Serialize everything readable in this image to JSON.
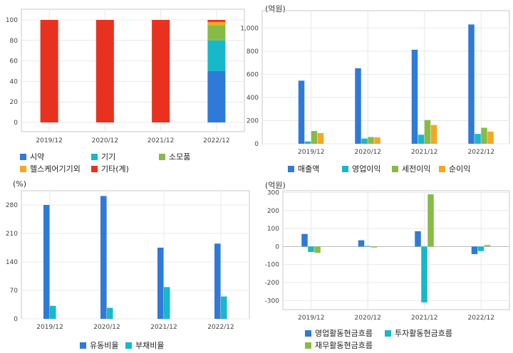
{
  "colors": {
    "blue": "#2f7ad9",
    "teal": "#17b8c9",
    "green": "#86bc45",
    "orange": "#f5a623",
    "red": "#e8321f"
  },
  "chart_data": [
    {
      "type": "bar",
      "stacked": true,
      "categories": [
        "2019/12",
        "2020/12",
        "2021/12",
        "2022/12"
      ],
      "ylim": [
        0,
        100
      ],
      "yticks": [
        0,
        20,
        40,
        60,
        80,
        100
      ],
      "legend_position": "bottom",
      "series": [
        {
          "name": "시약",
          "color": "#2f7ad9",
          "values": [
            0,
            0,
            0,
            50
          ]
        },
        {
          "name": "기기",
          "color": "#17b8c9",
          "values": [
            0,
            0,
            0,
            30
          ]
        },
        {
          "name": "소모품",
          "color": "#86bc45",
          "values": [
            0,
            0,
            0,
            15
          ]
        },
        {
          "name": "헬스케어기기외",
          "color": "#f5a623",
          "values": [
            0,
            0,
            0,
            3
          ]
        },
        {
          "name": "기타(계)",
          "color": "#e8321f",
          "values": [
            100,
            100,
            100,
            2
          ]
        }
      ]
    },
    {
      "type": "bar",
      "unit": "(억원)",
      "categories": [
        "2019/12",
        "2020/12",
        "2021/12",
        "2022/12"
      ],
      "ylim": [
        0,
        1100
      ],
      "yticks": [
        0,
        200,
        400,
        600,
        800,
        1000
      ],
      "ytick_labels": [
        "0",
        "200",
        "400",
        "600",
        "800",
        "1,000"
      ],
      "legend_position": "bottom",
      "series": [
        {
          "name": "매출액",
          "color": "#2f7ad9",
          "values": [
            545,
            652,
            812,
            1030
          ]
        },
        {
          "name": "영업이익",
          "color": "#17b8c9",
          "values": [
            20,
            45,
            78,
            85
          ]
        },
        {
          "name": "세전이익",
          "color": "#86bc45",
          "values": [
            110,
            58,
            205,
            138
          ]
        },
        {
          "name": "순이익",
          "color": "#f5a623",
          "values": [
            92,
            55,
            162,
            105
          ]
        }
      ]
    },
    {
      "type": "bar",
      "unit": "(%)",
      "categories": [
        "2019/12",
        "2020/12",
        "2021/12",
        "2022/12"
      ],
      "ylim": [
        0,
        315
      ],
      "yticks": [
        0,
        70,
        140,
        210,
        280
      ],
      "legend_position": "bottom",
      "series": [
        {
          "name": "유동비율",
          "color": "#2f7ad9",
          "values": [
            280,
            302,
            175,
            185
          ]
        },
        {
          "name": "부채비율",
          "color": "#17b8c9",
          "values": [
            32,
            27,
            78,
            55
          ]
        }
      ]
    },
    {
      "type": "bar",
      "unit": "(억원)",
      "categories": [
        "2019/12",
        "2020/12",
        "2021/12",
        "2022/12"
      ],
      "ylim": [
        -350,
        310
      ],
      "yticks": [
        -300,
        -200,
        -100,
        0,
        100,
        200,
        300
      ],
      "legend_position": "bottom",
      "series": [
        {
          "name": "영업활동현금흐름",
          "color": "#2f7ad9",
          "values": [
            70,
            35,
            85,
            -42
          ]
        },
        {
          "name": "투자활동현금흐름",
          "color": "#17b8c9",
          "values": [
            -30,
            3,
            -310,
            -25
          ]
        },
        {
          "name": "재무활동현금흐름",
          "color": "#86bc45",
          "values": [
            -35,
            -5,
            290,
            8
          ]
        }
      ]
    }
  ]
}
